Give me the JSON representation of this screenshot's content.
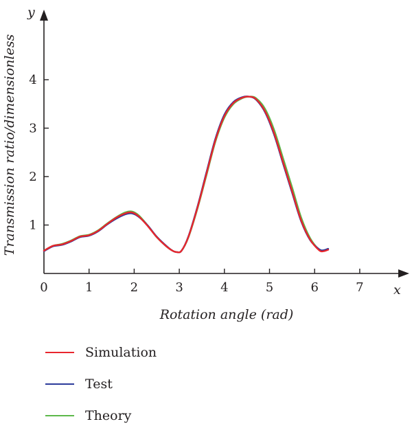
{
  "chart_data": {
    "type": "line",
    "xlabel": "Rotation angle (rad)",
    "ylabel": "Transmission ratio/dimensionless",
    "x_axis_letter": "x",
    "y_axis_letter": "y",
    "xlim": [
      0,
      7
    ],
    "ylim": [
      0,
      4
    ],
    "x_ticks": [
      0,
      1,
      2,
      3,
      4,
      5,
      6,
      7
    ],
    "y_ticks": [
      1,
      2,
      3,
      4
    ],
    "grid": false,
    "legend_position": "bottom-left",
    "series": [
      {
        "name": "Simulation",
        "color": "#e8262d",
        "x": [
          0,
          0.2,
          0.4,
          0.6,
          0.8,
          1.0,
          1.2,
          1.4,
          1.6,
          1.8,
          1.95,
          2.1,
          2.3,
          2.5,
          2.7,
          2.85,
          2.95,
          3.05,
          3.2,
          3.4,
          3.6,
          3.8,
          4.0,
          4.2,
          4.4,
          4.55,
          4.7,
          4.9,
          5.1,
          5.3,
          5.5,
          5.7,
          5.9,
          6.1,
          6.2,
          6.3
        ],
        "values": [
          0.47,
          0.57,
          0.6,
          0.67,
          0.76,
          0.79,
          0.88,
          1.02,
          1.15,
          1.24,
          1.26,
          1.18,
          0.98,
          0.75,
          0.57,
          0.47,
          0.44,
          0.47,
          0.75,
          1.35,
          2.05,
          2.75,
          3.25,
          3.52,
          3.63,
          3.65,
          3.6,
          3.35,
          2.9,
          2.3,
          1.7,
          1.1,
          0.7,
          0.48,
          0.46,
          0.49
        ]
      },
      {
        "name": "Test",
        "color": "#2b3a9a",
        "x": [
          0,
          0.2,
          0.4,
          0.6,
          0.8,
          1.0,
          1.2,
          1.4,
          1.6,
          1.8,
          1.95,
          2.1,
          2.3,
          2.5,
          2.7,
          2.85,
          2.95,
          3.05,
          3.2,
          3.4,
          3.6,
          3.8,
          4.0,
          4.2,
          4.4,
          4.55,
          4.7,
          4.9,
          5.1,
          5.3,
          5.5,
          5.7,
          5.9,
          6.1,
          6.2,
          6.3
        ],
        "values": [
          0.46,
          0.56,
          0.59,
          0.66,
          0.75,
          0.78,
          0.87,
          1.01,
          1.13,
          1.22,
          1.24,
          1.17,
          0.99,
          0.76,
          0.58,
          0.47,
          0.44,
          0.47,
          0.76,
          1.37,
          2.08,
          2.78,
          3.28,
          3.54,
          3.64,
          3.65,
          3.59,
          3.33,
          2.87,
          2.27,
          1.67,
          1.08,
          0.69,
          0.5,
          0.48,
          0.51
        ]
      },
      {
        "name": "Theory",
        "color": "#5cb84a",
        "x": [
          0,
          0.2,
          0.4,
          0.6,
          0.8,
          1.0,
          1.2,
          1.4,
          1.6,
          1.8,
          1.95,
          2.1,
          2.3,
          2.5,
          2.7,
          2.85,
          2.95,
          3.05,
          3.2,
          3.4,
          3.6,
          3.8,
          4.0,
          4.2,
          4.4,
          4.55,
          4.7,
          4.9,
          5.1,
          5.3,
          5.5,
          5.7,
          5.9,
          6.1,
          6.2,
          6.3
        ],
        "values": [
          0.47,
          0.57,
          0.61,
          0.68,
          0.77,
          0.8,
          0.89,
          1.03,
          1.16,
          1.26,
          1.28,
          1.2,
          0.99,
          0.75,
          0.57,
          0.47,
          0.44,
          0.47,
          0.74,
          1.33,
          2.02,
          2.72,
          3.22,
          3.5,
          3.62,
          3.65,
          3.62,
          3.4,
          2.97,
          2.38,
          1.78,
          1.16,
          0.73,
          0.49,
          0.47,
          0.5
        ]
      }
    ]
  }
}
